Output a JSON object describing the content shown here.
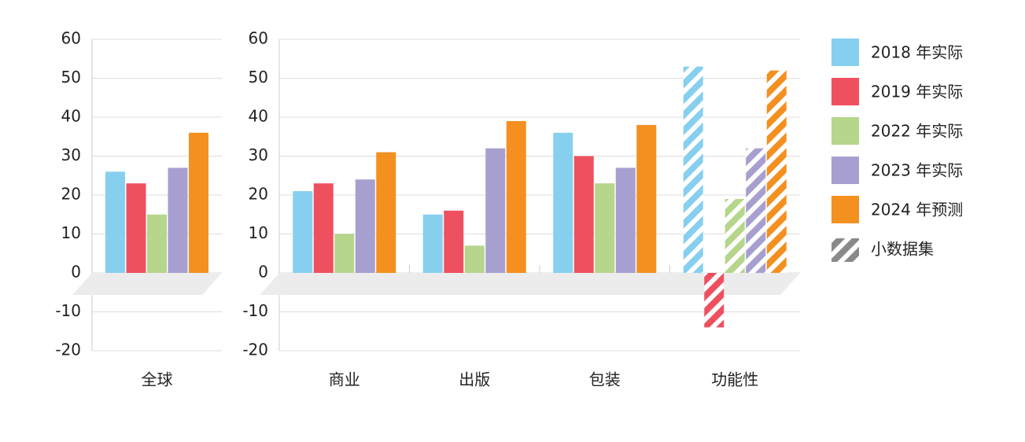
{
  "chart_data": [
    {
      "type": "bar",
      "categories": [
        "全球"
      ],
      "ylim": [
        -20,
        60
      ],
      "yticks": [
        -20,
        -10,
        0,
        10,
        20,
        30,
        40,
        50,
        60
      ],
      "grid": true,
      "series": [
        {
          "color": "#87cfef",
          "values": [
            26
          ]
        },
        {
          "color": "#ef5060",
          "values": [
            23
          ]
        },
        {
          "color": "#b5d68b",
          "values": [
            15
          ]
        },
        {
          "color": "#a79fcf",
          "values": [
            27
          ]
        },
        {
          "color": "#f39020",
          "values": [
            36
          ]
        }
      ]
    },
    {
      "type": "bar",
      "categories": [
        "商业",
        "出版",
        "包装",
        "功能性"
      ],
      "ylim": [
        -20,
        60
      ],
      "yticks": [
        -20,
        -10,
        0,
        10,
        20,
        30,
        40,
        50,
        60
      ],
      "grid": true,
      "hatched": [
        false,
        false,
        false,
        true
      ],
      "hatched_legend_label": "小数据集",
      "legend": "right",
      "series": [
        {
          "name": "2018 年实际",
          "color": "#87cfef",
          "values": [
            21,
            15,
            36,
            53
          ]
        },
        {
          "name": "2019 年实际",
          "color": "#ef5060",
          "values": [
            23,
            16,
            30,
            -14
          ]
        },
        {
          "name": "2022 年实际",
          "color": "#b5d68b",
          "values": [
            10,
            7,
            23,
            19
          ]
        },
        {
          "name": "2023 年实际",
          "color": "#a79fcf",
          "values": [
            24,
            32,
            27,
            32
          ]
        },
        {
          "name": "2024 年预测",
          "color": "#f39020",
          "values": [
            31,
            39,
            38,
            52
          ]
        }
      ]
    }
  ]
}
